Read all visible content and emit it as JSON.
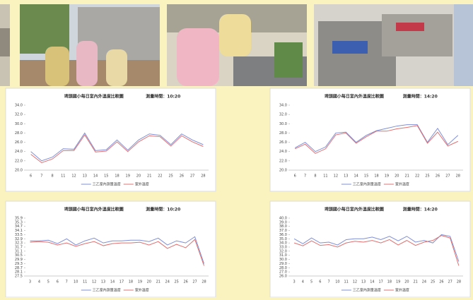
{
  "chart_data": [
    {
      "type": "line",
      "title": "埤頭國小每日室內外溫度比較圖",
      "subtitle": "測量時間：10:20",
      "categories": [
        6,
        7,
        8,
        11,
        12,
        13,
        14,
        15,
        18,
        19,
        20,
        21,
        22,
        25,
        26,
        27,
        28
      ],
      "series": [
        {
          "name": "三乙室內測量溫度",
          "color": "#7f8fd6",
          "values": [
            24.0,
            22.0,
            22.8,
            24.6,
            24.5,
            28.0,
            24.2,
            24.4,
            26.5,
            24.3,
            26.5,
            27.8,
            27.5,
            25.5,
            27.8,
            26.5,
            25.5
          ]
        },
        {
          "name": "室外溫度",
          "color": "#e07070",
          "values": [
            23.4,
            21.6,
            22.4,
            24.2,
            24.2,
            27.6,
            23.9,
            24.1,
            26.1,
            24.0,
            26.1,
            27.4,
            27.2,
            25.2,
            27.4,
            26.1,
            25.1
          ]
        }
      ],
      "ylim": [
        20,
        34
      ],
      "yticks": [
        {
          "value": 20,
          "label": "20.0"
        },
        {
          "value": 22,
          "label": "22.0"
        },
        {
          "value": 24,
          "label": "24.0"
        },
        {
          "value": 26,
          "label": "26.0"
        },
        {
          "value": 28,
          "label": "28.0"
        },
        {
          "value": 30,
          "label": "30.0"
        },
        {
          "value": 32,
          "label": "32.0"
        },
        {
          "value": 34,
          "label": "34.0"
        }
      ]
    },
    {
      "type": "line",
      "title": "埤頭國小每日室內外溫度比較圖",
      "subtitle": "測量時間：14:20",
      "categories": [
        6,
        7,
        8,
        11,
        12,
        13,
        14,
        15,
        18,
        19,
        20,
        21,
        22,
        25,
        26,
        27,
        28
      ],
      "series": [
        {
          "name": "三乙室內測量溫度",
          "color": "#7f8fd6",
          "values": [
            24.8,
            26.0,
            24.0,
            25.0,
            28.0,
            28.2,
            26.0,
            27.5,
            28.5,
            29.0,
            29.5,
            29.8,
            29.8,
            26.0,
            29.0,
            25.5,
            27.5
          ]
        },
        {
          "name": "室外溫度",
          "color": "#e07070",
          "values": [
            24.6,
            25.6,
            23.6,
            24.6,
            27.6,
            28.0,
            25.8,
            27.2,
            28.4,
            28.4,
            28.9,
            29.2,
            29.6,
            25.8,
            28.2,
            25.2,
            26.2
          ]
        }
      ],
      "ylim": [
        20,
        34
      ],
      "yticks": [
        {
          "value": 20,
          "label": "20.0"
        },
        {
          "value": 22,
          "label": "22.0"
        },
        {
          "value": 24,
          "label": "24.0"
        },
        {
          "value": 26,
          "label": "26.0"
        },
        {
          "value": 28,
          "label": "28.0"
        },
        {
          "value": 30,
          "label": "30.0"
        },
        {
          "value": 32,
          "label": "32.0"
        },
        {
          "value": 34,
          "label": "34.0"
        }
      ]
    },
    {
      "type": "line",
      "title": "埤頭國小每日室內外溫度比較圖",
      "subtitle": "測量時間：10:20",
      "categories": [
        3,
        4,
        5,
        6,
        7,
        10,
        11,
        12,
        13,
        14,
        17,
        18,
        19,
        20,
        21,
        24,
        25,
        26,
        27,
        28
      ],
      "series": [
        {
          "name": "三乙室內測量溫度",
          "color": "#7f8fd6",
          "values": [
            32.6,
            32.6,
            32.7,
            32.2,
            32.9,
            32.0,
            32.6,
            33.0,
            32.3,
            32.6,
            32.6,
            32.7,
            32.7,
            32.5,
            33.0,
            32.0,
            32.6,
            32.3,
            33.2,
            29.3
          ]
        },
        {
          "name": "室外溫度",
          "color": "#e07070",
          "values": [
            32.4,
            32.5,
            32.4,
            32.0,
            32.3,
            31.8,
            32.2,
            32.5,
            31.9,
            32.2,
            32.3,
            32.3,
            32.4,
            32.0,
            32.5,
            31.5,
            32.1,
            31.6,
            32.8,
            29.0
          ]
        }
      ],
      "ylim": [
        27.5,
        35.9
      ],
      "yticks": [
        27.5,
        28.1,
        28.7,
        29.3,
        29.9,
        30.5,
        31.1,
        31.7,
        32.3,
        32.9,
        33.5,
        34.1,
        34.7,
        35.3,
        35.9
      ]
    },
    {
      "type": "line",
      "title": "埤頭國小每日室內外溫度比較圖",
      "subtitle": "測量時間：14:20",
      "categories": [
        3,
        4,
        5,
        6,
        7,
        10,
        11,
        12,
        13,
        14,
        17,
        18,
        19,
        20,
        21,
        24,
        25,
        26,
        27,
        28
      ],
      "series": [
        {
          "name": "三乙室內測量溫度",
          "color": "#7f8fd6",
          "values": [
            35.0,
            33.8,
            35.2,
            34.0,
            34.2,
            33.5,
            34.8,
            35.0,
            35.0,
            35.4,
            34.8,
            35.6,
            34.5,
            35.6,
            34.2,
            34.6,
            34.0,
            36.0,
            35.6,
            29.5
          ]
        },
        {
          "name": "室外溫度",
          "color": "#e07070",
          "values": [
            34.0,
            33.3,
            34.5,
            33.4,
            33.6,
            33.0,
            34.0,
            34.4,
            34.2,
            34.6,
            34.0,
            34.8,
            33.5,
            34.6,
            33.4,
            34.2,
            34.6,
            35.8,
            35.2,
            28.5
          ]
        }
      ],
      "ylim": [
        26,
        40
      ],
      "yticks": [
        {
          "value": 26,
          "label": "26.0"
        },
        {
          "value": 27,
          "label": "27.0"
        },
        {
          "value": 28,
          "label": "28.0"
        },
        {
          "value": 29,
          "label": "29.0"
        },
        {
          "value": 30,
          "label": "30.0"
        },
        {
          "value": 31,
          "label": "31.0"
        },
        {
          "value": 32,
          "label": "32.0"
        },
        {
          "value": 33,
          "label": "33.0"
        },
        {
          "value": 34,
          "label": "34.0"
        },
        {
          "value": 35,
          "label": "35.0"
        },
        {
          "value": 36,
          "label": "36.0"
        },
        {
          "value": 37,
          "label": "37.0"
        },
        {
          "value": 38,
          "label": "38.0"
        },
        {
          "value": 39,
          "label": "39.0"
        },
        {
          "value": 40,
          "label": "40.0"
        }
      ]
    }
  ]
}
